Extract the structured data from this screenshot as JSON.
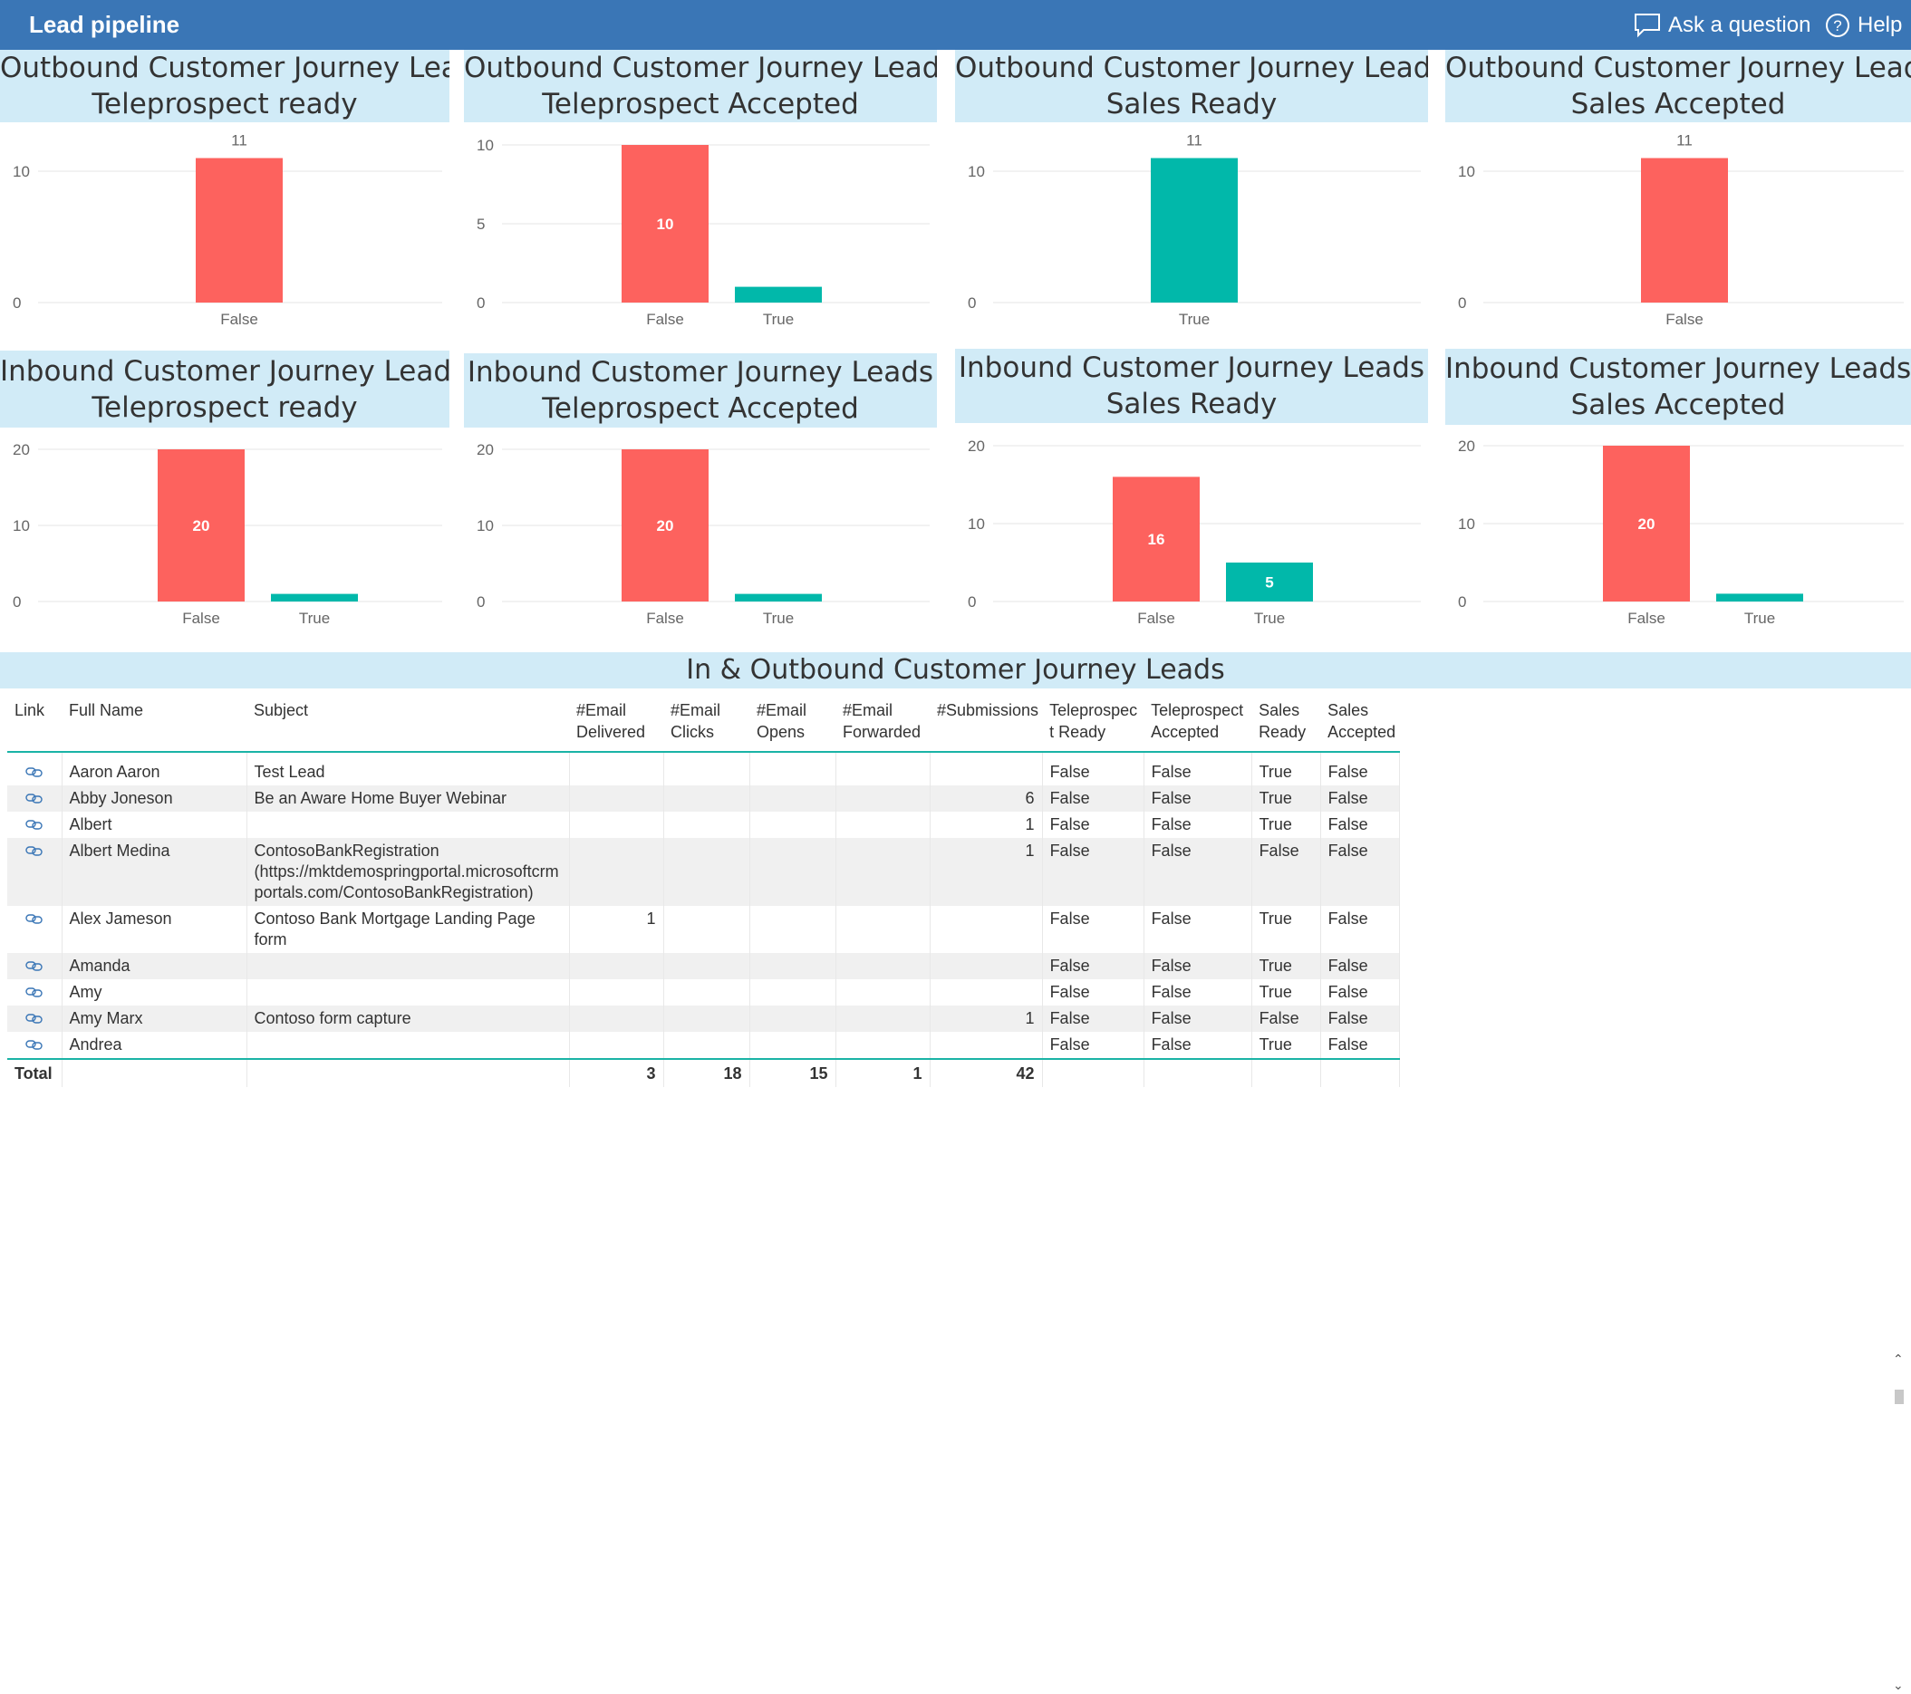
{
  "header": {
    "title": "Lead pipeline",
    "ask_label": "Ask a question",
    "help_label": "Help",
    "ask_icon": "speech-bubble-icon",
    "help_icon": "question-circle-icon"
  },
  "colors": {
    "false_bar": "#fd625e",
    "true_bar": "#01b8aa",
    "header_bg": "#3a76b6",
    "title_bg": "#d1ebf7"
  },
  "tiles": [
    {
      "title_line1": "Outbound Customer Journey Leads",
      "title_line2": "Teleprospect ready"
    },
    {
      "title_line1": "Outbound Customer Journey Leads",
      "title_line2": "Teleprospect Accepted"
    },
    {
      "title_line1": "Outbound Customer Journey Leads",
      "title_line2": "Sales Ready"
    },
    {
      "title_line1": "Outbound Customer Journey Leads",
      "title_line2": "Sales Accepted"
    },
    {
      "title_line1": "Inbound Customer Journey Leads",
      "title_line2": "Teleprospect ready"
    },
    {
      "title_line1": "Inbound Customer Journey Leads",
      "title_line2": "Teleprospect Accepted"
    },
    {
      "title_line1": "Inbound Customer Journey Leads",
      "title_line2": "Sales Ready"
    },
    {
      "title_line1": "Inbound Customer Journey Leads",
      "title_line2": "Sales Accepted"
    }
  ],
  "chart_data": [
    {
      "type": "bar",
      "categories": [
        "False"
      ],
      "values": [
        11
      ],
      "yticks": [
        0,
        10
      ],
      "ylim": [
        0,
        12
      ],
      "labels": [
        "11"
      ],
      "label_pos": [
        "above"
      ]
    },
    {
      "type": "bar",
      "categories": [
        "False",
        "True"
      ],
      "values": [
        10,
        1
      ],
      "yticks": [
        0,
        5,
        10
      ],
      "ylim": [
        0,
        10
      ],
      "labels": [
        "10",
        ""
      ],
      "label_pos": [
        "inside",
        "none"
      ]
    },
    {
      "type": "bar",
      "categories": [
        "True"
      ],
      "values": [
        11
      ],
      "yticks": [
        0,
        10
      ],
      "ylim": [
        0,
        12
      ],
      "labels": [
        "11"
      ],
      "label_pos": [
        "above"
      ]
    },
    {
      "type": "bar",
      "categories": [
        "False"
      ],
      "values": [
        11
      ],
      "yticks": [
        0,
        10
      ],
      "ylim": [
        0,
        12
      ],
      "labels": [
        "11"
      ],
      "label_pos": [
        "above"
      ]
    },
    {
      "type": "bar",
      "categories": [
        "False",
        "True"
      ],
      "values": [
        20,
        1
      ],
      "yticks": [
        0,
        10,
        20
      ],
      "ylim": [
        0,
        20
      ],
      "labels": [
        "20",
        ""
      ],
      "label_pos": [
        "inside",
        "none"
      ]
    },
    {
      "type": "bar",
      "categories": [
        "False",
        "True"
      ],
      "values": [
        20,
        1
      ],
      "yticks": [
        0,
        10,
        20
      ],
      "ylim": [
        0,
        20
      ],
      "labels": [
        "20",
        ""
      ],
      "label_pos": [
        "inside",
        "none"
      ]
    },
    {
      "type": "bar",
      "categories": [
        "False",
        "True"
      ],
      "values": [
        16,
        5
      ],
      "yticks": [
        0,
        10,
        20
      ],
      "ylim": [
        0,
        20
      ],
      "labels": [
        "16",
        "5"
      ],
      "label_pos": [
        "inside",
        "inside"
      ]
    },
    {
      "type": "bar",
      "categories": [
        "False",
        "True"
      ],
      "values": [
        20,
        1
      ],
      "yticks": [
        0,
        10,
        20
      ],
      "ylim": [
        0,
        20
      ],
      "labels": [
        "20",
        ""
      ],
      "label_pos": [
        "inside",
        "none"
      ]
    }
  ],
  "table": {
    "title": "In & Outbound Customer Journey Leads",
    "columns": [
      {
        "line1": "Link",
        "line2": ""
      },
      {
        "line1": "Full Name",
        "line2": ""
      },
      {
        "line1": "Subject",
        "line2": ""
      },
      {
        "line1": "#Email",
        "line2": "Delivered"
      },
      {
        "line1": "#Email",
        "line2": "Clicks"
      },
      {
        "line1": "#Email",
        "line2": "Opens"
      },
      {
        "line1": "#Email",
        "line2": "Forwarded"
      },
      {
        "line1": "#Submissions",
        "line2": ""
      },
      {
        "line1": "Teleprospec",
        "line2": "t Ready"
      },
      {
        "line1": "Teleprospect",
        "line2": "Accepted"
      },
      {
        "line1": "Sales",
        "line2": "Ready"
      },
      {
        "line1": "Sales",
        "line2": "Accepted"
      }
    ],
    "rows": [
      {
        "name": "Aaron Aaron",
        "subject": [
          "Test Lead"
        ],
        "delivered": "",
        "clicks": "",
        "opens": "",
        "forwarded": "",
        "submissions": "",
        "tp_ready": "False",
        "tp_accepted": "False",
        "sales_ready": "True",
        "sales_accepted": "False"
      },
      {
        "name": "Abby Joneson",
        "subject": [
          "Be an Aware Home Buyer Webinar"
        ],
        "delivered": "",
        "clicks": "",
        "opens": "",
        "forwarded": "",
        "submissions": "6",
        "tp_ready": "False",
        "tp_accepted": "False",
        "sales_ready": "True",
        "sales_accepted": "False"
      },
      {
        "name": "Albert",
        "subject": [
          ""
        ],
        "delivered": "",
        "clicks": "",
        "opens": "",
        "forwarded": "",
        "submissions": "1",
        "tp_ready": "False",
        "tp_accepted": "False",
        "sales_ready": "True",
        "sales_accepted": "False"
      },
      {
        "name": "Albert Medina",
        "subject": [
          "ContosoBankRegistration",
          "(https://mktdemospringportal.microsoftcrm",
          "portals.com/ContosoBankRegistration)"
        ],
        "delivered": "",
        "clicks": "",
        "opens": "",
        "forwarded": "",
        "submissions": "1",
        "tp_ready": "False",
        "tp_accepted": "False",
        "sales_ready": "False",
        "sales_accepted": "False"
      },
      {
        "name": "Alex Jameson",
        "subject": [
          "Contoso Bank Mortgage Landing Page",
          "form"
        ],
        "delivered": "1",
        "clicks": "",
        "opens": "",
        "forwarded": "",
        "submissions": "",
        "tp_ready": "False",
        "tp_accepted": "False",
        "sales_ready": "True",
        "sales_accepted": "False"
      },
      {
        "name": "Amanda",
        "subject": [
          ""
        ],
        "delivered": "",
        "clicks": "",
        "opens": "",
        "forwarded": "",
        "submissions": "",
        "tp_ready": "False",
        "tp_accepted": "False",
        "sales_ready": "True",
        "sales_accepted": "False"
      },
      {
        "name": "Amy",
        "subject": [
          ""
        ],
        "delivered": "",
        "clicks": "",
        "opens": "",
        "forwarded": "",
        "submissions": "",
        "tp_ready": "False",
        "tp_accepted": "False",
        "sales_ready": "True",
        "sales_accepted": "False"
      },
      {
        "name": "Amy Marx",
        "subject": [
          "Contoso form capture"
        ],
        "delivered": "",
        "clicks": "",
        "opens": "",
        "forwarded": "",
        "submissions": "1",
        "tp_ready": "False",
        "tp_accepted": "False",
        "sales_ready": "False",
        "sales_accepted": "False"
      },
      {
        "name": "Andrea",
        "subject": [
          ""
        ],
        "delivered": "",
        "clicks": "",
        "opens": "",
        "forwarded": "",
        "submissions": "",
        "tp_ready": "False",
        "tp_accepted": "False",
        "sales_ready": "True",
        "sales_accepted": "False"
      }
    ],
    "total": {
      "label": "Total",
      "delivered": "3",
      "clicks": "18",
      "opens": "15",
      "forwarded": "1",
      "submissions": "42"
    }
  }
}
